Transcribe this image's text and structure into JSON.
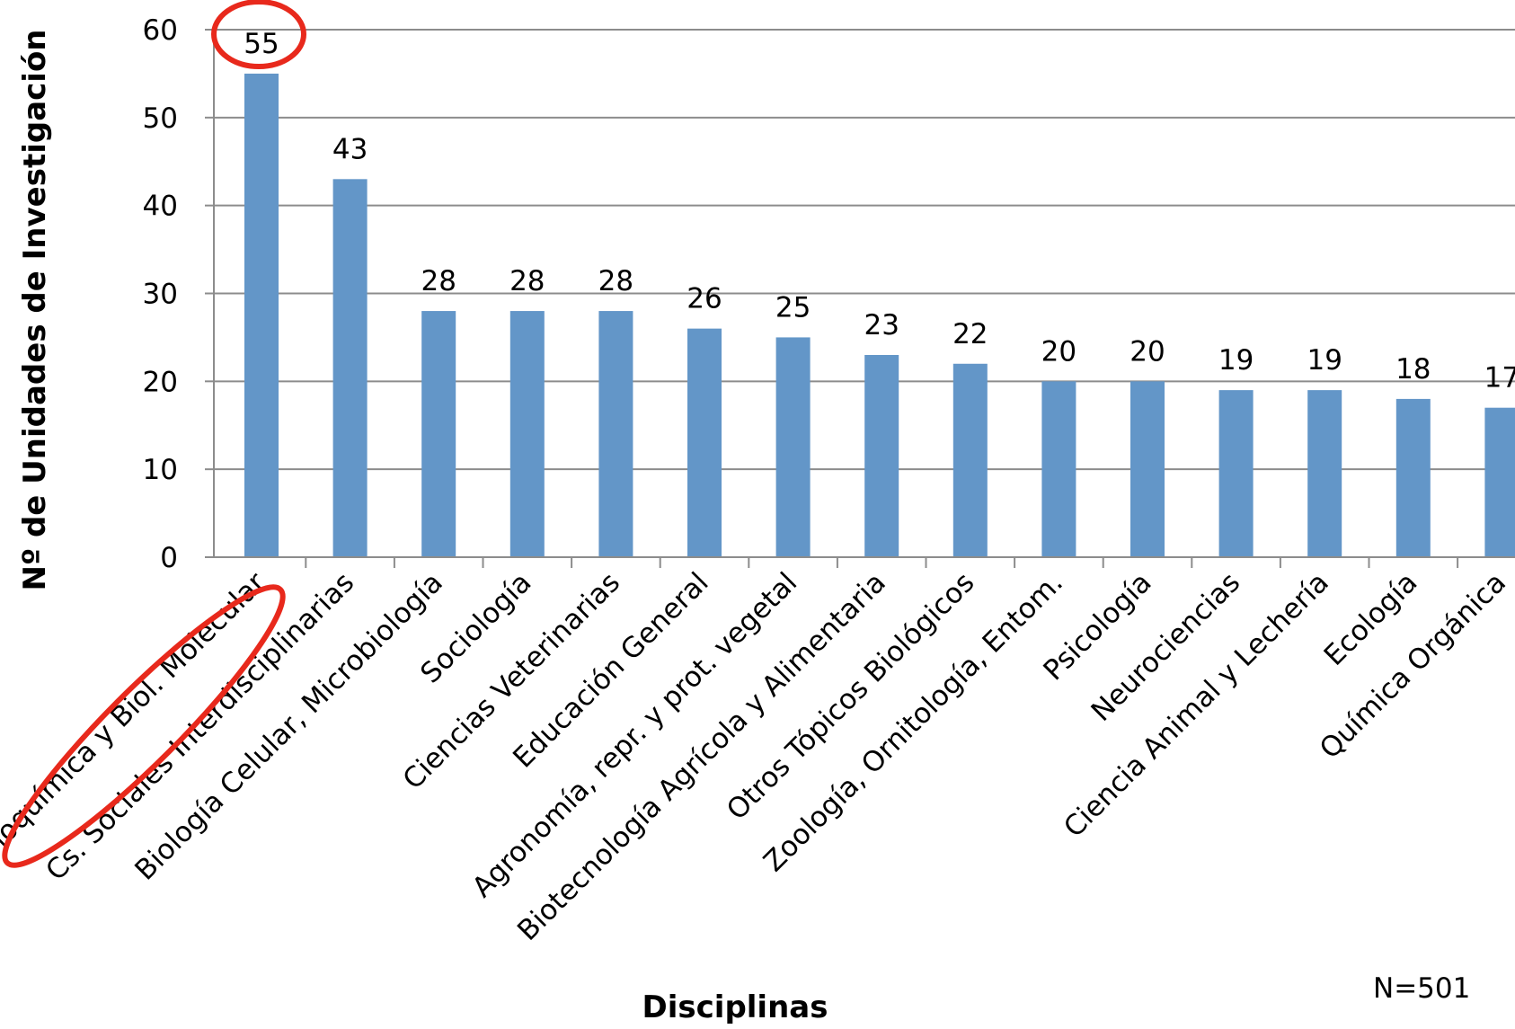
{
  "chart_data": {
    "type": "bar",
    "title": "",
    "xlabel": "Disciplinas",
    "ylabel": "Nº de Unidades de Investigación",
    "categories": [
      "Bioquímica y Biol. Molecular",
      "Cs. Sociales Interdisciplinarias",
      "Biología Celular, Microbiología",
      "Sociología",
      "Ciencias Veterinarias",
      "Educación General",
      "Agronomía, repr. y prot. vegetal",
      "Biotecnología Agrícola y Alimentaria",
      "Otros Tópicos Biológicos",
      "Zoología, Ornitología, Entom.",
      "Psicología",
      "Neurociencias",
      "Ciencia Animal y Lechería",
      "Ecología",
      "Química Orgánica"
    ],
    "values": [
      55,
      43,
      28,
      28,
      28,
      26,
      25,
      23,
      22,
      20,
      20,
      19,
      19,
      18,
      17
    ],
    "ylim": [
      0,
      60
    ],
    "yticks": [
      "0",
      "10",
      "20",
      "30",
      "40",
      "50",
      "60"
    ],
    "grid": true,
    "bar_color": "#6396c8",
    "highlight_color": "#e8291c",
    "highlighted_index": 0,
    "note": "N=501"
  }
}
